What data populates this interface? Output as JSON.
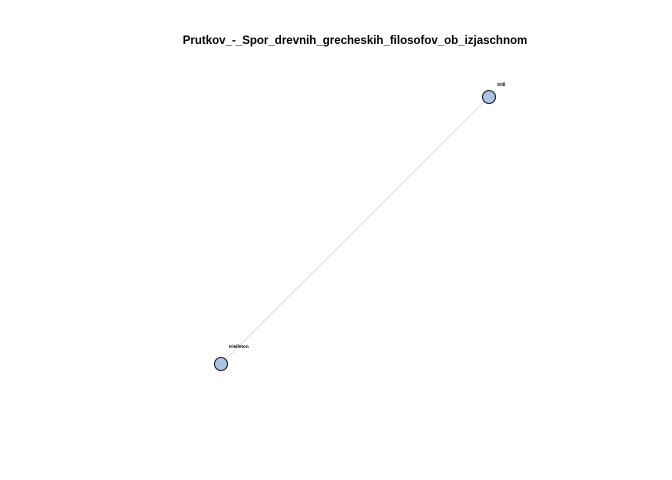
{
  "title": "Prutkov_-_Spor_drevnih_grecheskih_filosofov_ob_izjaschnom",
  "nodes": [
    {
      "id": "still",
      "label": "Still"
    },
    {
      "id": "kleifeton",
      "label": "Kleifeton"
    }
  ],
  "edges": [
    {
      "from": "still",
      "to": "kleifeton"
    }
  ],
  "colors": {
    "node_fill": "#a9c4e4",
    "node_stroke": "#1a1a1a",
    "edge": "#d9d9d9",
    "background": "#ffffff"
  }
}
